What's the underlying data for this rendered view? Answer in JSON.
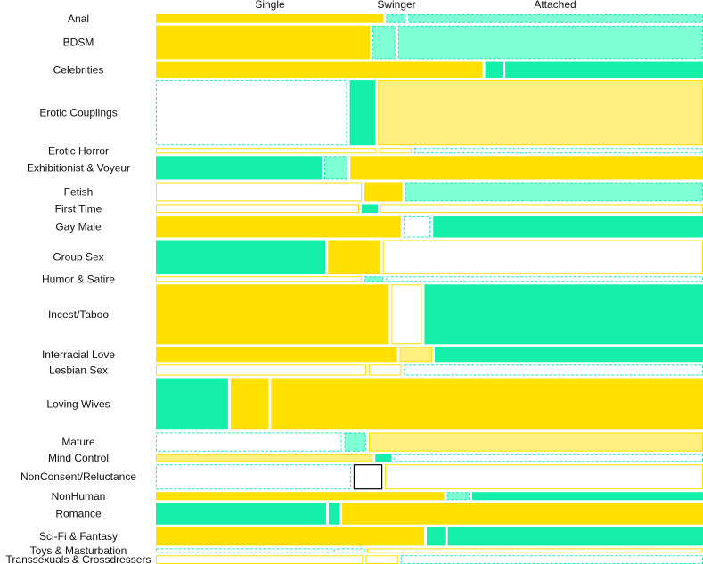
{
  "chart_data": {
    "type": "mosaic",
    "columns": [
      "Single",
      "Swinger",
      "Attached"
    ],
    "colors": {
      "strong_yellow": "#FFE000",
      "light_yellow": "#FFF07F",
      "strong_green": "#14EFAA",
      "light_green": "#7FFFD4",
      "outline_yellow": "#FFE000",
      "outline_green": "#14EFAA",
      "white": "#FFFFFF"
    },
    "rows": [
      {
        "category": "Anal",
        "share": 0.016,
        "widths": [
          0.42,
          0.036,
          0.544
        ],
        "styles": [
          "sy",
          "lg",
          "lg"
        ]
      },
      {
        "category": "BDSM",
        "share": 0.062,
        "widths": [
          0.395,
          0.042,
          0.563
        ],
        "styles": [
          "sy",
          "lg",
          "lg"
        ]
      },
      {
        "category": "Celebrities",
        "share": 0.029,
        "widths": [
          0.603,
          0.032,
          0.365
        ],
        "styles": [
          "sy",
          "sg",
          "sg"
        ]
      },
      {
        "category": "Erotic Couplings",
        "share": 0.12,
        "widths": [
          0.353,
          0.047,
          0.6
        ],
        "styles": [
          "wg",
          "sg",
          "ly"
        ]
      },
      {
        "category": "Erotic Horror",
        "share": 0.01,
        "widths": [
          0.407,
          0.06,
          0.533
        ],
        "styles": [
          "wy",
          "wy",
          "wg"
        ]
      },
      {
        "category": "Exhibitionist & Voyeur",
        "share": 0.043,
        "widths": [
          0.306,
          0.043,
          0.651
        ],
        "styles": [
          "sg",
          "lg",
          "sy"
        ]
      },
      {
        "category": "Fetish",
        "share": 0.036,
        "widths": [
          0.38,
          0.07,
          0.55
        ],
        "styles": [
          "wy",
          "sy",
          "lg"
        ]
      },
      {
        "category": "First Time",
        "share": 0.016,
        "widths": [
          0.375,
          0.03,
          0.595
        ],
        "styles": [
          "wy",
          "sg",
          "wy"
        ]
      },
      {
        "category": "Gay Male",
        "share": 0.04,
        "widths": [
          0.452,
          0.05,
          0.498
        ],
        "styles": [
          "sy",
          "wg",
          "sg"
        ]
      },
      {
        "category": "Group Sex",
        "share": 0.062,
        "widths": [
          0.313,
          0.096,
          0.591
        ],
        "styles": [
          "sg",
          "sy",
          "wy"
        ]
      },
      {
        "category": "Humor & Satire",
        "share": 0.01,
        "widths": [
          0.38,
          0.035,
          0.585
        ],
        "styles": [
          "wy",
          "lg",
          "wg"
        ]
      },
      {
        "category": "Incest/Taboo",
        "share": 0.11,
        "widths": [
          0.43,
          0.056,
          0.514
        ],
        "styles": [
          "sy",
          "wy",
          "sg"
        ]
      },
      {
        "category": "Interracial Love",
        "share": 0.028,
        "widths": [
          0.445,
          0.06,
          0.495
        ],
        "styles": [
          "sy",
          "ly",
          "sg"
        ]
      },
      {
        "category": "Lesbian Sex",
        "share": 0.02,
        "widths": [
          0.388,
          0.06,
          0.552
        ],
        "styles": [
          "wy",
          "wy",
          "wg"
        ]
      },
      {
        "category": "Loving Wives",
        "share": 0.095,
        "widths": [
          0.133,
          0.07,
          0.797
        ],
        "styles": [
          "sg",
          "sy",
          "sy"
        ]
      },
      {
        "category": "Mature",
        "share": 0.035,
        "widths": [
          0.343,
          0.04,
          0.617
        ],
        "styles": [
          "wg",
          "lg",
          "ly"
        ]
      },
      {
        "category": "Mind Control",
        "share": 0.014,
        "widths": [
          0.4,
          0.03,
          0.57
        ],
        "styles": [
          "ly",
          "sg",
          "wg"
        ]
      },
      {
        "category": "NonConsent/Reluctance",
        "share": 0.046,
        "widths": [
          0.36,
          0.053,
          0.587
        ],
        "styles": [
          "wg",
          "box",
          "wy"
        ]
      },
      {
        "category": "NonHuman",
        "share": 0.015,
        "widths": [
          0.532,
          0.042,
          0.426
        ],
        "styles": [
          "sy",
          "lg",
          "sg"
        ]
      },
      {
        "category": "Romance",
        "share": 0.04,
        "widths": [
          0.314,
          0.02,
          0.666
        ],
        "styles": [
          "sg",
          "sg",
          "sy"
        ]
      },
      {
        "category": "Sci-Fi & Fantasy",
        "share": 0.034,
        "widths": [
          0.495,
          0.034,
          0.471
        ],
        "styles": [
          "sy",
          "sg",
          "sg"
        ]
      },
      {
        "category": "Toys & Masturbation",
        "share": 0.008,
        "widths": [
          0.33,
          0.05,
          0.62
        ],
        "styles": [
          "wg",
          "wg",
          "wy"
        ]
      },
      {
        "category": "Transsexuals & Crossdressers",
        "share": 0.016,
        "widths": [
          0.382,
          0.06,
          0.558
        ],
        "styles": [
          "wy",
          "wy",
          "wg"
        ]
      }
    ]
  }
}
